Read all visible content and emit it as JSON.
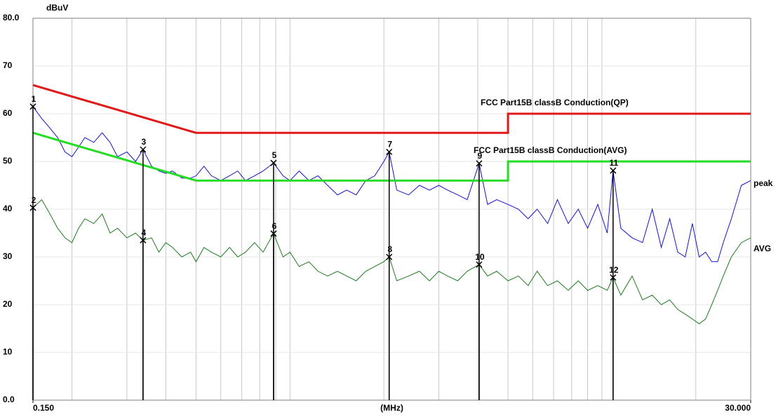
{
  "chart_data": {
    "type": "line",
    "x_label": "(MHz)",
    "y_label": "dBuV",
    "log_x": true,
    "grid": true,
    "xlim": [
      0.15,
      30
    ],
    "ylim": [
      0,
      80
    ],
    "xticks": [
      {
        "value": 0.15,
        "label": "0.150"
      },
      {
        "value": 30,
        "label": "30.000"
      }
    ],
    "xgrid": [
      0.2,
      0.3,
      0.4,
      0.5,
      0.6,
      0.7,
      0.8,
      0.9,
      1,
      2,
      3,
      4,
      5,
      6,
      7,
      8,
      9,
      10,
      20
    ],
    "yticks": [
      {
        "value": 80,
        "label": "80.0"
      },
      70,
      60,
      50,
      40,
      30,
      20,
      10,
      {
        "value": 0,
        "label": "0.0"
      }
    ],
    "x": [
      0.15,
      0.16,
      0.17,
      0.18,
      0.19,
      0.2,
      0.21,
      0.22,
      0.235,
      0.25,
      0.265,
      0.28,
      0.3,
      0.32,
      0.338,
      0.36,
      0.38,
      0.4,
      0.42,
      0.45,
      0.48,
      0.5,
      0.53,
      0.56,
      0.6,
      0.64,
      0.68,
      0.72,
      0.77,
      0.82,
      0.886,
      0.95,
      1.0,
      1.07,
      1.15,
      1.23,
      1.32,
      1.42,
      1.52,
      1.63,
      1.75,
      1.87,
      2.0,
      2.08,
      2.2,
      2.4,
      2.6,
      2.8,
      3.0,
      3.2,
      3.45,
      3.7,
      4.04,
      4.3,
      4.6,
      5.0,
      5.4,
      5.8,
      6.2,
      6.7,
      7.2,
      7.8,
      8.4,
      9.0,
      9.7,
      10.4,
      10.86,
      11.5,
      12.5,
      13.5,
      14.5,
      15.5,
      16.5,
      17.5,
      18.5,
      19.5,
      20.5,
      21.5,
      22.5,
      23.5,
      24.5,
      26,
      28,
      30
    ],
    "series": [
      {
        "name": "peak",
        "color": "#1414c8",
        "values": [
          61.5,
          59,
          57,
          55,
          52,
          51,
          53,
          55,
          54,
          56,
          54,
          51,
          52,
          50,
          52.5,
          49,
          48,
          47.5,
          48,
          46.5,
          46.5,
          47,
          49,
          47,
          46,
          47,
          48,
          46,
          47,
          48,
          49.7,
          47,
          46,
          48,
          46,
          47,
          45,
          43,
          44,
          43,
          46,
          47,
          50,
          52,
          44,
          43,
          45,
          44,
          45,
          44,
          43,
          42,
          49.6,
          41,
          42,
          41,
          40,
          38,
          40,
          37,
          42,
          37,
          40,
          36,
          41,
          35,
          48.1,
          36,
          34,
          33,
          40,
          32,
          38,
          31,
          30,
          37,
          30,
          31,
          29,
          29,
          33,
          38,
          45,
          46
        ]
      },
      {
        "name": "AVG",
        "color": "#1e7a1e",
        "values": [
          40.3,
          42,
          39,
          36,
          34,
          33,
          36,
          38,
          37,
          39,
          35,
          36,
          34,
          35,
          33.5,
          34,
          31,
          33,
          32,
          30,
          31,
          29,
          32,
          31,
          30,
          32,
          30,
          31,
          33,
          31,
          34.9,
          30,
          31,
          28,
          29,
          27,
          26,
          27,
          26,
          25,
          27,
          28,
          29,
          30,
          25,
          26,
          27,
          25,
          27,
          26,
          25,
          27,
          28.4,
          26,
          27,
          25,
          26,
          24,
          27,
          24,
          25,
          23,
          25,
          23,
          24,
          23,
          25.7,
          22,
          26,
          21,
          22,
          20,
          21,
          19,
          18,
          17,
          16,
          17,
          20,
          23,
          26,
          30,
          33,
          34
        ]
      },
      {
        "name": "FCC  Part15B classB Conduction(QP)",
        "color": "#e01818",
        "x": [
          0.15,
          0.5,
          5,
          5,
          30
        ],
        "values": [
          66,
          56,
          56,
          60,
          60
        ]
      },
      {
        "name": "FCC  Part15B classB Conduction(AVG)",
        "color": "#22dd22",
        "x": [
          0.15,
          0.5,
          5,
          5,
          30
        ],
        "values": [
          56,
          46,
          46,
          50,
          50
        ]
      }
    ],
    "markers": [
      {
        "label": "1",
        "freq": 0.15,
        "level": 61.5
      },
      {
        "label": "2",
        "freq": 0.15,
        "level": 40.3
      },
      {
        "label": "3",
        "freq": 0.338,
        "level": 52.5
      },
      {
        "label": "4",
        "freq": 0.338,
        "level": 33.5
      },
      {
        "label": "5",
        "freq": 0.886,
        "level": 49.7
      },
      {
        "label": "6",
        "freq": 0.886,
        "level": 34.9
      },
      {
        "label": "7",
        "freq": 2.08,
        "level": 52
      },
      {
        "label": "8",
        "freq": 2.08,
        "level": 30
      },
      {
        "label": "9",
        "freq": 4.04,
        "level": 49.6
      },
      {
        "label": "10",
        "freq": 4.04,
        "level": 28.4
      },
      {
        "label": "11",
        "freq": 10.86,
        "level": 48.1
      },
      {
        "label": "12",
        "freq": 10.86,
        "level": 25.7
      }
    ]
  }
}
